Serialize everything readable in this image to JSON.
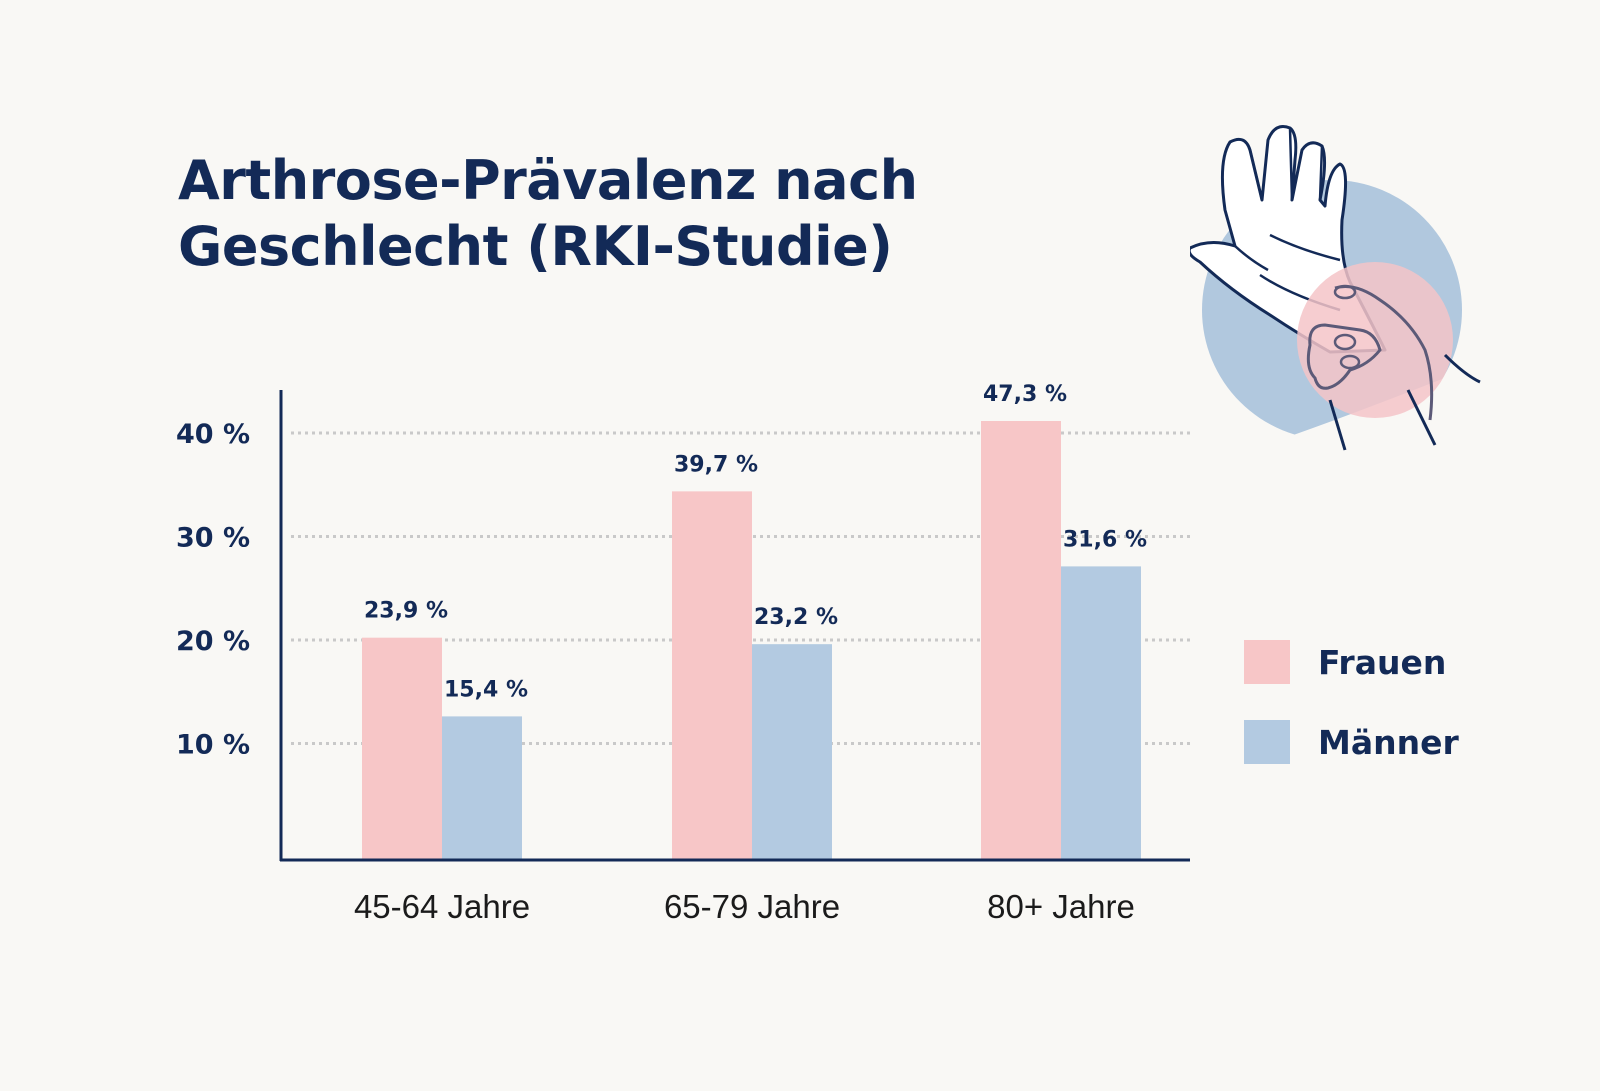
{
  "title_lines": [
    "Arthrose-Prävalenz nach",
    "Geschlecht (RKI-Studie)"
  ],
  "illustration": {
    "icon": "hand-holding-wrist-icon",
    "description": "Hand gripping painful wrist"
  },
  "colors": {
    "frauen": "#f7c6c7",
    "maenner": "#b3cae1",
    "text": "#132a57",
    "axis": "#132a57",
    "grid": "#c9c9c9",
    "circle_blue": "#a9c2dc",
    "circle_pink": "#f4c4c8",
    "background": "#f9f8f5"
  },
  "legend": [
    {
      "label": "Frauen",
      "series": "frauen"
    },
    {
      "label": "Männer",
      "series": "maenner"
    }
  ],
  "chart_data": {
    "type": "bar",
    "title": "Arthrose-Prävalenz nach Geschlecht (RKI-Studie)",
    "xlabel": "",
    "ylabel": "",
    "categories": [
      "45-64 Jahre",
      "65-79 Jahre",
      "80+ Jahre"
    ],
    "series": [
      {
        "name": "Frauen",
        "key": "frauen",
        "values": [
          23.9,
          39.7,
          47.3
        ],
        "labels": [
          "23,9 %",
          "39,7 %",
          "47,3 %"
        ]
      },
      {
        "name": "Männer",
        "key": "maenner",
        "values": [
          15.4,
          23.2,
          31.6
        ],
        "labels": [
          "15,4 %",
          "23,2 %",
          "31,6 %"
        ]
      }
    ],
    "yticks": [
      10,
      20,
      30,
      40
    ],
    "ytick_labels": [
      "10 %",
      "20 %",
      "30 %",
      "40 %"
    ],
    "ylim": [
      0,
      45
    ],
    "grid": true,
    "grid_style": "dotted",
    "legend_position": "right"
  }
}
